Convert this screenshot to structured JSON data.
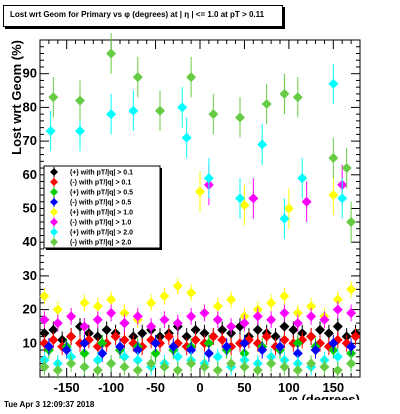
{
  "header": {
    "title": "Lost wrt Geom for Primary vs φ (degrees) at | η | <= 1.0 at pT > 0.11"
  },
  "footer": {
    "timestamp": "Tue Apr  3 12:09:37 2018"
  },
  "chart_data": {
    "type": "scatter",
    "title": "Lost wrt Geom for Primary vs φ (degrees) at | η | <= 1.0 at pT > 0.11",
    "xlabel": "φ (degrees)",
    "ylabel": "Lost wrt Geom (%)",
    "xlim": [
      -180,
      180
    ],
    "ylim": [
      0,
      100
    ],
    "xticks": [
      -150,
      -100,
      -50,
      0,
      50,
      100,
      150
    ],
    "yticks": [
      10,
      20,
      30,
      40,
      50,
      60,
      70,
      80,
      90
    ],
    "grid": false,
    "legend_position": "left-middle",
    "series": [
      {
        "name": "(+) with pT/|q| > 0.1",
        "color": "#000000",
        "marker": "diamond",
        "x": [
          -175,
          -165,
          -155,
          -145,
          -135,
          -125,
          -115,
          -105,
          -95,
          -85,
          -75,
          -65,
          -55,
          -45,
          -35,
          -25,
          -15,
          -5,
          5,
          15,
          25,
          35,
          45,
          55,
          65,
          75,
          85,
          95,
          105,
          115,
          125,
          135,
          145,
          155,
          165,
          175
        ],
        "y": [
          13,
          14,
          11,
          12,
          15,
          13,
          12,
          14,
          13,
          16,
          12,
          13,
          14,
          12,
          13,
          15,
          12,
          14,
          13,
          12,
          14,
          13,
          15,
          12,
          14,
          13,
          12,
          15,
          14,
          13,
          12,
          14,
          13,
          15,
          12,
          13
        ]
      },
      {
        "name": "(-) with pT/|q| > 0.1",
        "color": "#ff0000",
        "marker": "diamond",
        "x": [
          -175,
          -165,
          -155,
          -145,
          -135,
          -125,
          -115,
          -105,
          -95,
          -85,
          -75,
          -65,
          -55,
          -45,
          -35,
          -25,
          -15,
          -5,
          5,
          15,
          25,
          35,
          45,
          55,
          65,
          75,
          85,
          95,
          105,
          115,
          125,
          135,
          145,
          155,
          165,
          175
        ],
        "y": [
          10,
          11,
          9,
          12,
          10,
          11,
          9,
          10,
          12,
          11,
          10,
          9,
          11,
          10,
          12,
          10,
          9,
          11,
          10,
          12,
          11,
          9,
          10,
          11,
          10,
          12,
          9,
          11,
          10,
          11,
          12,
          10,
          9,
          11,
          10,
          12
        ]
      },
      {
        "name": "(+) with pT/|q| > 0.5",
        "color": "#00cc00",
        "marker": "diamond",
        "x": [
          -170,
          -150,
          -130,
          -110,
          -90,
          -70,
          -50,
          -30,
          -10,
          10,
          30,
          50,
          70,
          90,
          110,
          130,
          150,
          170
        ],
        "y": [
          8,
          9,
          7,
          10,
          8,
          9,
          7,
          8,
          9,
          10,
          8,
          7,
          9,
          8,
          10,
          9,
          8,
          7
        ]
      },
      {
        "name": "(-) with pT/|q| > 0.5",
        "color": "#0000ff",
        "marker": "diamond",
        "x": [
          -170,
          -150,
          -130,
          -110,
          -90,
          -70,
          -50,
          -30,
          -10,
          10,
          30,
          50,
          70,
          90,
          110,
          130,
          150,
          170
        ],
        "y": [
          9,
          8,
          10,
          7,
          9,
          8,
          10,
          9,
          8,
          7,
          9,
          10,
          8,
          9,
          7,
          8,
          10,
          9
        ]
      },
      {
        "name": "(+) with pT/|q| > 1.0",
        "color": "#ffff00",
        "marker": "diamond",
        "x": [
          -175,
          -160,
          -145,
          -130,
          -115,
          -100,
          -85,
          -70,
          -55,
          -40,
          -25,
          -10,
          5,
          20,
          35,
          50,
          65,
          80,
          95,
          110,
          125,
          140,
          155,
          170,
          -150,
          -100,
          -50,
          0,
          50,
          100,
          150
        ],
        "y": [
          24,
          20,
          18,
          22,
          21,
          23,
          19,
          17,
          22,
          24,
          27,
          25,
          19,
          21,
          23,
          18,
          20,
          22,
          24,
          19,
          21,
          18,
          23,
          26,
          48,
          52,
          47,
          55,
          51,
          50,
          54
        ]
      },
      {
        "name": "(-) with pT/|q| > 1.0",
        "color": "#ff00ff",
        "marker": "diamond",
        "x": [
          -175,
          -160,
          -145,
          -130,
          -115,
          -100,
          -85,
          -70,
          -55,
          -40,
          -25,
          -10,
          5,
          20,
          35,
          50,
          65,
          80,
          95,
          110,
          125,
          140,
          155,
          170,
          -120,
          -60,
          10,
          60,
          120,
          160
        ],
        "y": [
          17,
          16,
          18,
          15,
          17,
          19,
          16,
          18,
          15,
          17,
          16,
          18,
          19,
          17,
          15,
          16,
          18,
          17,
          19,
          16,
          18,
          17,
          20,
          19,
          49,
          56,
          57,
          53,
          52,
          57
        ]
      },
      {
        "name": "(+) with pT/|q| > 2.0",
        "color": "#00ffff",
        "marker": "diamond",
        "x": [
          -175,
          -160,
          -145,
          -130,
          -115,
          -100,
          -85,
          -70,
          -55,
          -40,
          -25,
          -10,
          5,
          20,
          35,
          50,
          65,
          80,
          95,
          110,
          125,
          140,
          155,
          170,
          -168,
          -135,
          -100,
          -75,
          -20,
          -15,
          10,
          45,
          70,
          95,
          115,
          150,
          160
        ],
        "y": [
          5,
          4,
          6,
          3,
          5,
          4,
          6,
          5,
          3,
          4,
          6,
          5,
          4,
          6,
          3,
          5,
          4,
          6,
          5,
          4,
          3,
          5,
          6,
          4,
          73,
          73,
          78,
          79,
          80,
          71,
          59,
          53,
          69,
          47,
          59,
          87,
          53
        ]
      },
      {
        "name": "(-) with pT/|q| > 2.0",
        "color": "#66cc44",
        "marker": "diamond",
        "x": [
          -175,
          -160,
          -145,
          -130,
          -115,
          -100,
          -85,
          -70,
          -55,
          -40,
          -25,
          -10,
          5,
          20,
          35,
          50,
          65,
          80,
          95,
          110,
          125,
          140,
          155,
          170,
          -165,
          -135,
          -100,
          -70,
          -45,
          -10,
          15,
          45,
          75,
          95,
          110,
          150,
          165,
          170
        ],
        "y": [
          3,
          2,
          4,
          3,
          2,
          4,
          3,
          2,
          4,
          3,
          2,
          4,
          3,
          2,
          4,
          3,
          2,
          4,
          3,
          2,
          4,
          3,
          2,
          4,
          83,
          82,
          96,
          89,
          79,
          89,
          78,
          77,
          81,
          84,
          83,
          65,
          62,
          46
        ]
      }
    ]
  }
}
